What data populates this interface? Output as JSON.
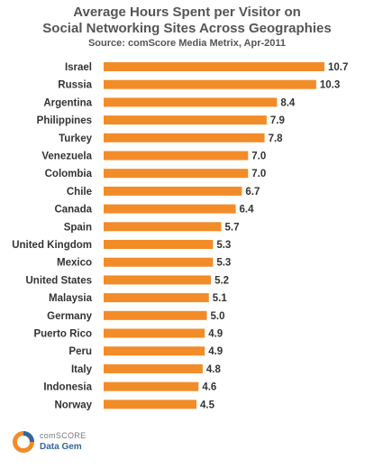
{
  "title_line1": "Average Hours Spent per Visitor on",
  "title_line2": "Social Networking Sites Across Geographies",
  "source": "Source: comScore Media Metrix, Apr-2011",
  "logo": {
    "line1": "comSCORE",
    "line2": "Data Gem",
    "icon": "comscore-logo-icon"
  },
  "colors": {
    "bar": "#F28C28",
    "text": "#333333",
    "title": "#555555"
  },
  "chart_data": {
    "type": "bar",
    "orientation": "horizontal",
    "categories": [
      "Israel",
      "Russia",
      "Argentina",
      "Philippines",
      "Turkey",
      "Venezuela",
      "Colombia",
      "Chile",
      "Canada",
      "Spain",
      "United Kingdom",
      "Mexico",
      "United States",
      "Malaysia",
      "Germany",
      "Puerto Rico",
      "Peru",
      "Italy",
      "Indonesia",
      "Norway"
    ],
    "values": [
      10.7,
      10.3,
      8.4,
      7.9,
      7.8,
      7.0,
      7.0,
      6.7,
      6.4,
      5.7,
      5.3,
      5.3,
      5.2,
      5.1,
      5.0,
      4.9,
      4.9,
      4.8,
      4.6,
      4.5
    ],
    "value_labels": [
      "10.7",
      "10.3",
      "8.4",
      "7.9",
      "7.8",
      "7.0",
      "7.0",
      "6.7",
      "6.4",
      "5.7",
      "5.3",
      "5.3",
      "5.2",
      "5.1",
      "5.0",
      "4.9",
      "4.9",
      "4.8",
      "4.6",
      "4.5"
    ],
    "grid": false,
    "legend": "none"
  }
}
